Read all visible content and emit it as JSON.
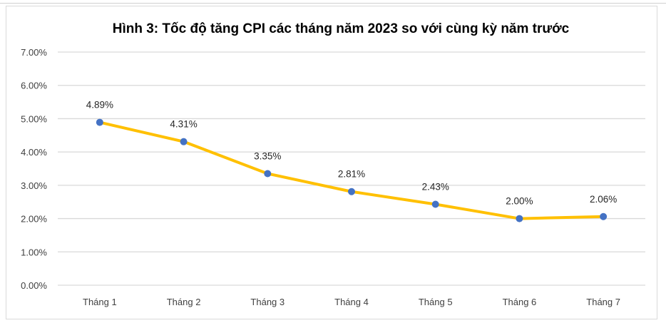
{
  "chart_data": {
    "type": "line",
    "title": "Hình 3: Tốc độ tăng CPI các tháng năm 2023 so với cùng kỳ năm trước",
    "xlabel": "",
    "ylabel": "",
    "categories": [
      "Tháng 1",
      "Tháng 2",
      "Tháng 3",
      "Tháng 4",
      "Tháng 5",
      "Tháng 6",
      "Tháng 7"
    ],
    "series": [
      {
        "values": [
          4.89,
          4.31,
          3.35,
          2.81,
          2.43,
          2.0,
          2.06
        ]
      }
    ],
    "data_labels": [
      "4.89%",
      "4.31%",
      "3.35%",
      "2.81%",
      "2.43%",
      "2.00%",
      "2.06%"
    ],
    "ylim": [
      0,
      7
    ],
    "yticks": [
      "0.00%",
      "1.00%",
      "2.00%",
      "3.00%",
      "4.00%",
      "5.00%",
      "6.00%",
      "7.00%"
    ],
    "grid": true,
    "legend": "none",
    "colors": {
      "line": "#FFC000",
      "marker": "#4472C4",
      "grid": "#d9d9d9"
    }
  }
}
